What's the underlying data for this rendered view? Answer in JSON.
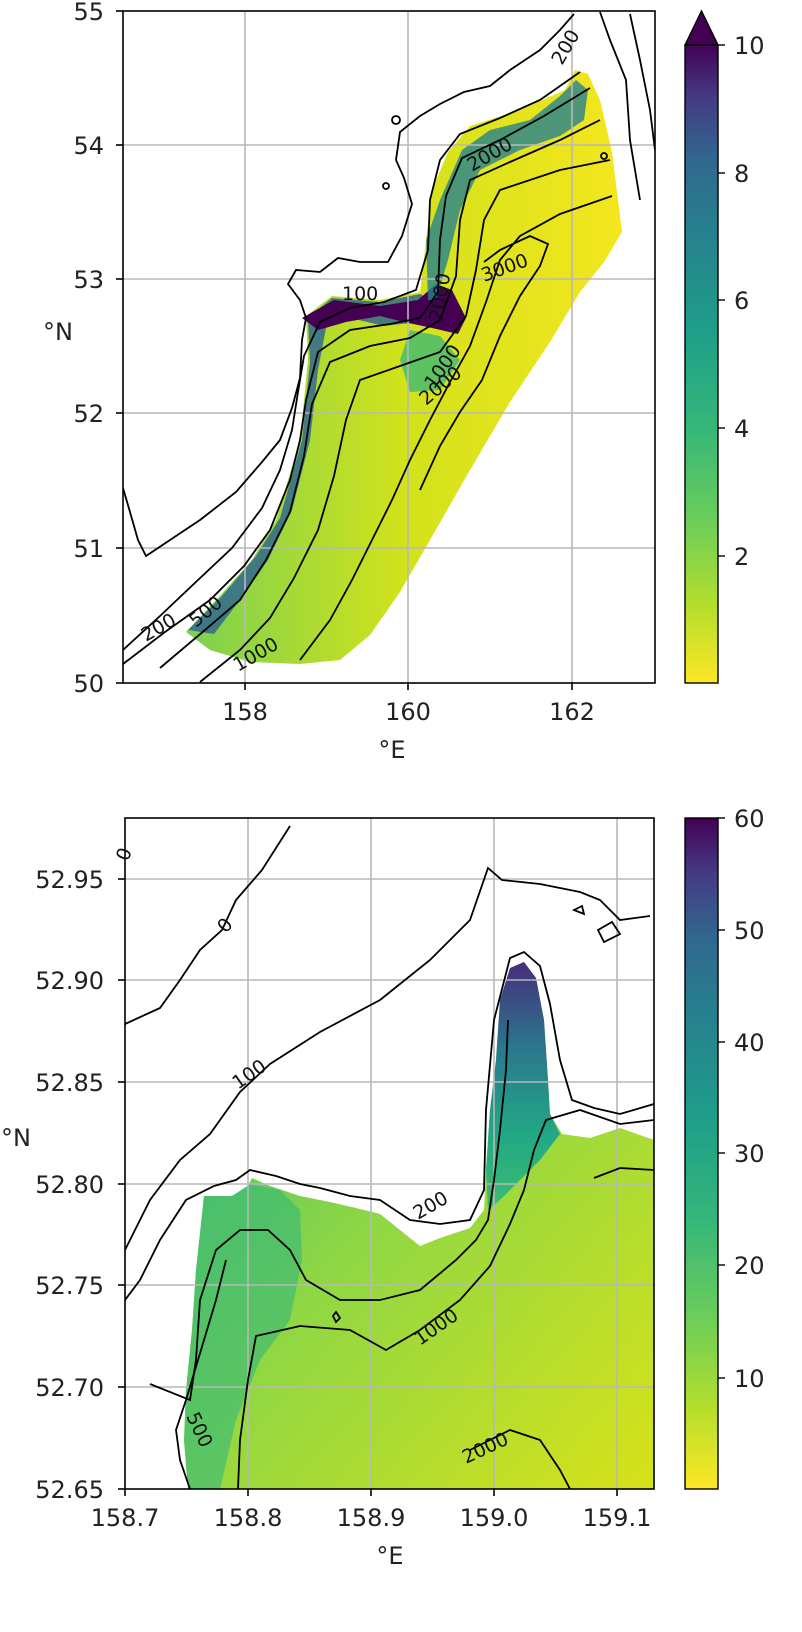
{
  "chart_data": [
    {
      "type": "heatmap",
      "title": "",
      "xlabel": "°E",
      "ylabel": "°N",
      "xlim": [
        156.5,
        163.0
      ],
      "ylim": [
        50,
        55
      ],
      "xticks": [
        "158",
        "160",
        "162"
      ],
      "yticks": [
        "50",
        "51",
        "52",
        "53",
        "54",
        "55"
      ],
      "grid": true,
      "colormap": "viridis_r",
      "colorbar": {
        "ticks": [
          "2",
          "4",
          "6",
          "8",
          "10"
        ],
        "range": [
          0,
          10
        ],
        "extend": "max"
      },
      "contour_levels": [
        "100",
        "200",
        "500",
        "1000",
        "2000",
        "3000"
      ],
      "contour_labels": [
        "100",
        "200",
        "500",
        "1000",
        "2000",
        "3000",
        "2000",
        "1000",
        "200",
        "2000"
      ]
    },
    {
      "type": "heatmap",
      "title": "",
      "xlabel": "°E",
      "ylabel": "°N",
      "xlim": [
        158.7,
        159.13
      ],
      "ylim": [
        52.65,
        52.98
      ],
      "xticks": [
        "158.7",
        "158.8",
        "158.9",
        "159.0",
        "159.1"
      ],
      "yticks": [
        "52.65",
        "52.70",
        "52.75",
        "52.80",
        "52.85",
        "52.90",
        "52.95"
      ],
      "grid": true,
      "colormap": "viridis_r",
      "colorbar": {
        "ticks": [
          "10",
          "20",
          "30",
          "40",
          "50",
          "60"
        ],
        "range": [
          0,
          60
        ]
      },
      "contour_levels": [
        "0",
        "100",
        "200",
        "500",
        "1000",
        "2000"
      ],
      "contour_labels": [
        "0",
        "0",
        "100",
        "200",
        "1000",
        "500",
        "2000"
      ]
    }
  ]
}
